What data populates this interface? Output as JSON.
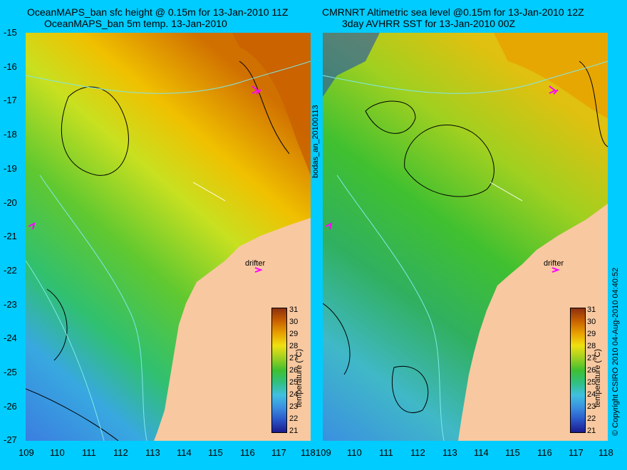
{
  "left_panel": {
    "title_line1": "OceanMAPS_ban sfc height @ 0.15m for 13-Jan-2010 11Z",
    "title_line2": "OceanMAPS_ban 5m temp. 13-Jan-2010"
  },
  "right_panel": {
    "title_line1": "CMRNRT Altimetric sea level  @0.15m  for 13-Jan-2010 12Z",
    "title_line2": "3day AVHRR SST for 13-Jan-2010 00Z"
  },
  "y_axis": {
    "ticks": [
      "-15",
      "-16",
      "-17",
      "-18",
      "-19",
      "-20",
      "-21",
      "-22",
      "-23",
      "-24",
      "-25",
      "-26",
      "-27"
    ]
  },
  "x_axis": {
    "ticks": [
      "109",
      "110",
      "111",
      "112",
      "113",
      "114",
      "115",
      "116",
      "117",
      "118"
    ]
  },
  "colorbar": {
    "label": "temperature (°C)",
    "ticks": [
      "31",
      "30",
      "29",
      "28",
      "27",
      "26",
      "25",
      "24",
      "23",
      "22",
      "21"
    ]
  },
  "annotations": {
    "drifter": "drifter",
    "file_label": "bodas_an_20100113",
    "copyright": "© Copyright CSIRO 2010   04-Aug-2010 04:40:52"
  },
  "colors": {
    "background": "#00ccff",
    "land": "#f8c8a0",
    "contour": "#000000",
    "bathymetry": "#80e8e8",
    "drifter_marker": "#ff00ff"
  }
}
